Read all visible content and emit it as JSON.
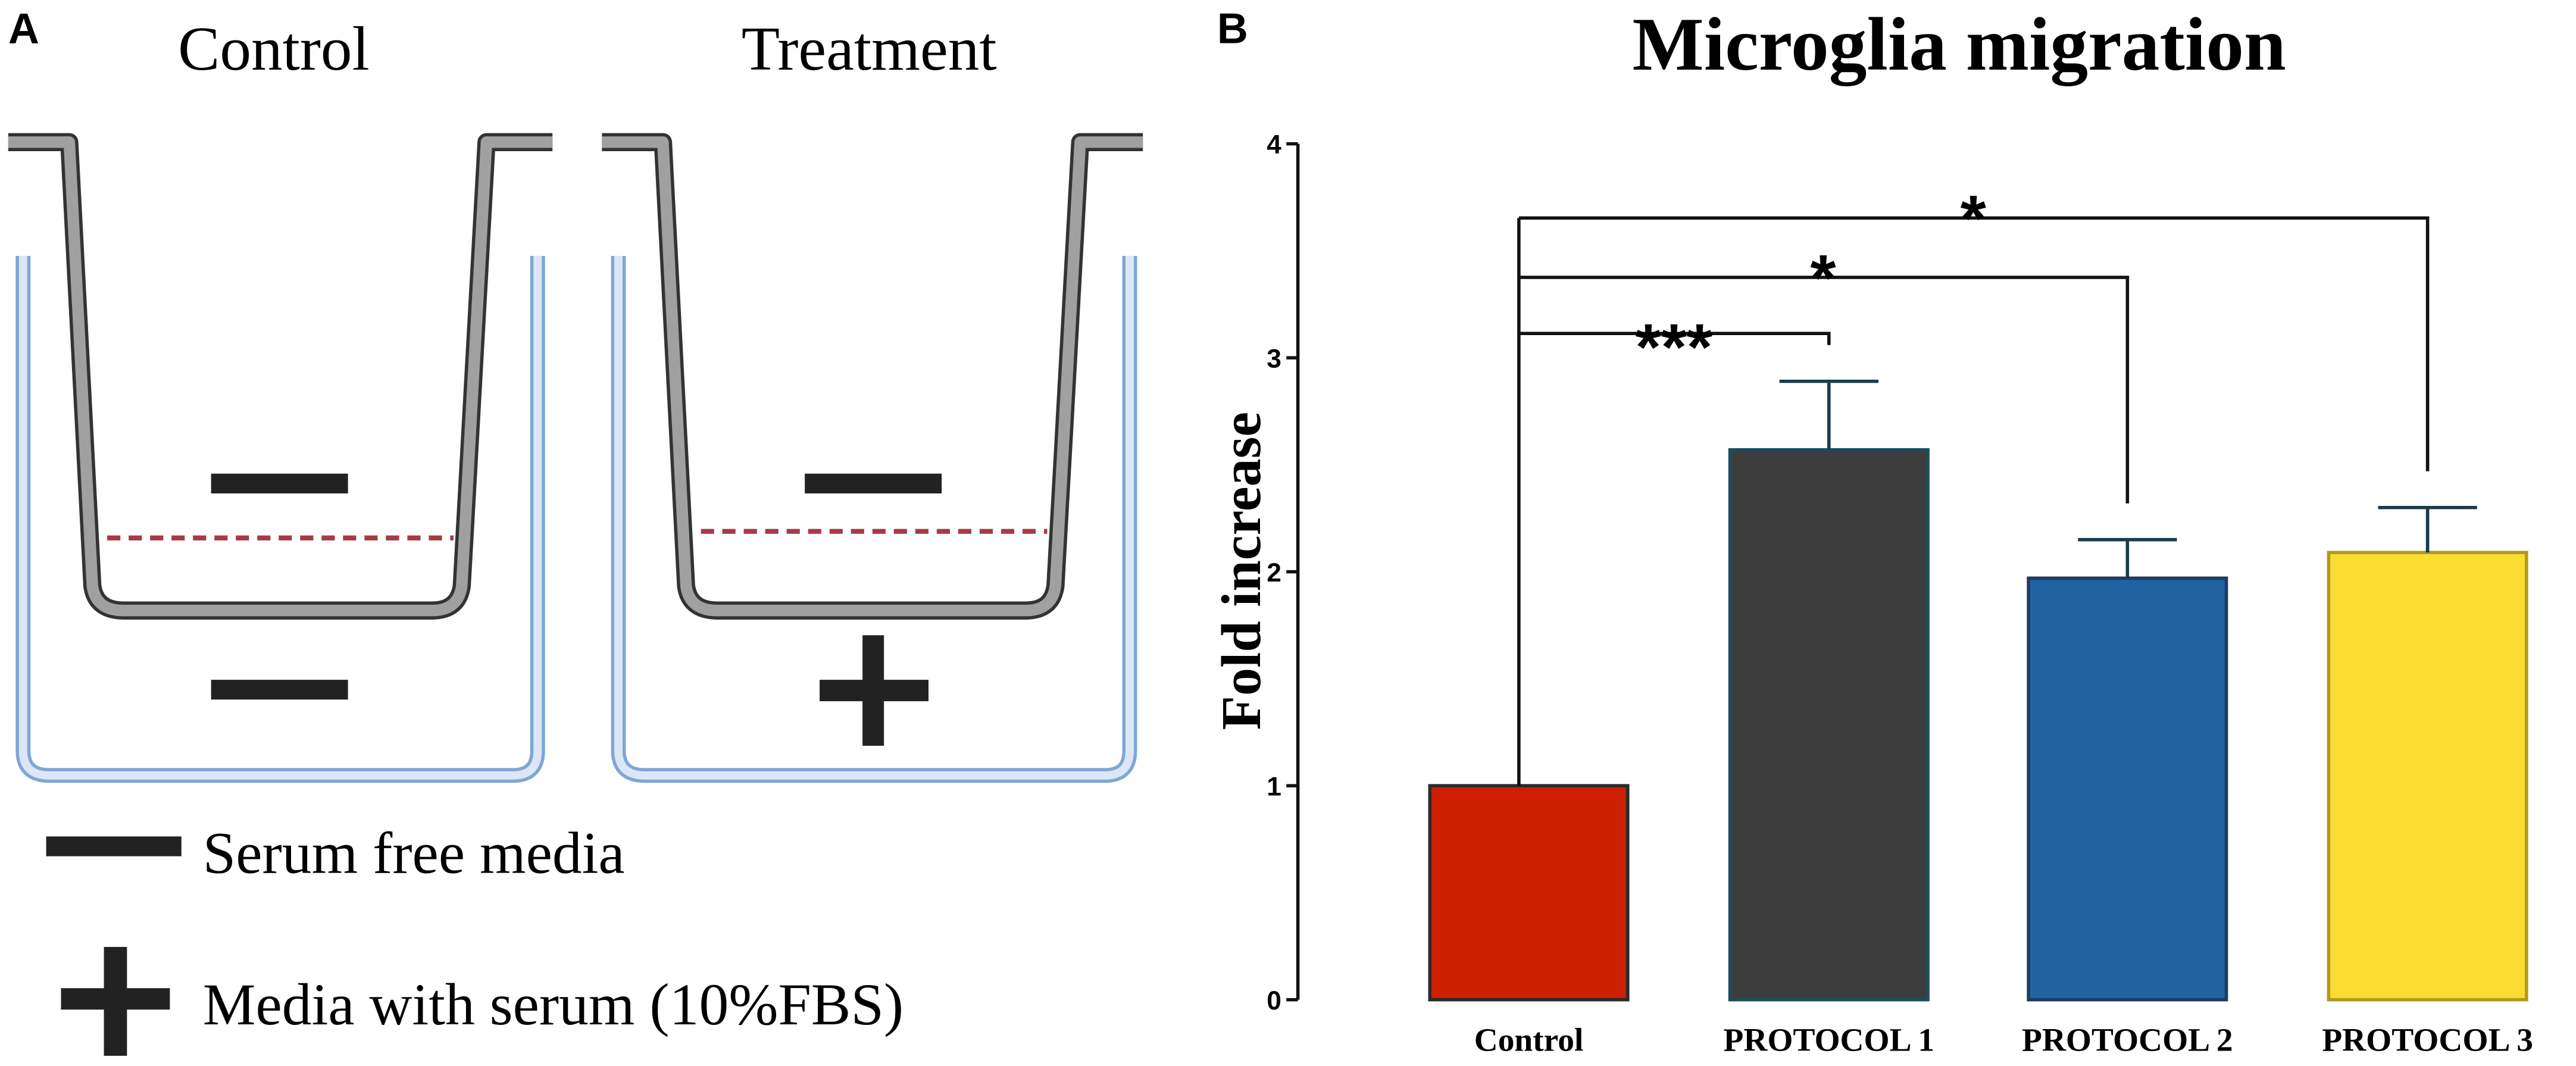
{
  "panel_a": {
    "label": "A",
    "columns": [
      "Control",
      "Treatment"
    ],
    "legend": [
      "Serum free media",
      "Media with serum (10%FBS)"
    ]
  },
  "panel_b": {
    "label": "B"
  },
  "chart_data": {
    "type": "bar",
    "title": "Microglia migration",
    "y_label": "Fold increase",
    "categories": [
      "Control",
      "PROTOCOL 1",
      "PROTOCOL 2",
      "PROTOCOL 3"
    ],
    "series": [
      {
        "name": "Fold increase",
        "values": [
          1.0,
          2.57,
          1.97,
          2.09
        ],
        "errors": [
          0,
          0.32,
          0.18,
          0.21
        ]
      }
    ],
    "colors": [
      "#cc2000",
      "#3d3d3d",
      "#2262a0",
      "#fadc32"
    ],
    "edge_colors": [
      "#2a2a2a",
      "#1b4d5e",
      "#1b3d60",
      "#b09a20"
    ],
    "annotations": [
      "***",
      "*",
      "*"
    ],
    "ylim": [
      0,
      4
    ],
    "yticks": [
      0,
      1,
      2,
      3,
      4
    ]
  }
}
